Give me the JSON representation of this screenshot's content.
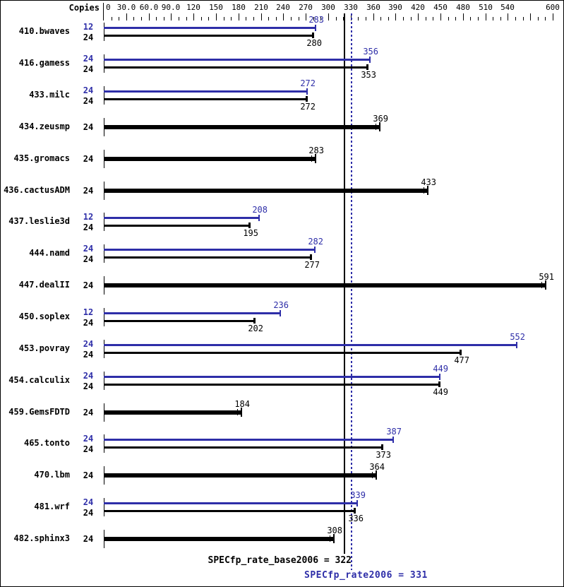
{
  "header": {
    "copies_label": "Copies"
  },
  "colors": {
    "peak": "#2E2EA8",
    "base": "#000000"
  },
  "axis": {
    "min": 0,
    "max": 600,
    "minor_step": 10,
    "major_step": 30,
    "tick_labels": [
      {
        "value": 0,
        "label": "0"
      },
      {
        "value": 30,
        "label": "30.0"
      },
      {
        "value": 60,
        "label": "60.0"
      },
      {
        "value": 90,
        "label": "90.0"
      },
      {
        "value": 120,
        "label": "120"
      },
      {
        "value": 150,
        "label": "150"
      },
      {
        "value": 180,
        "label": "180"
      },
      {
        "value": 210,
        "label": "210"
      },
      {
        "value": 240,
        "label": "240"
      },
      {
        "value": 270,
        "label": "270"
      },
      {
        "value": 300,
        "label": "300"
      },
      {
        "value": 330,
        "label": "330"
      },
      {
        "value": 360,
        "label": "360"
      },
      {
        "value": 390,
        "label": "390"
      },
      {
        "value": 420,
        "label": "420"
      },
      {
        "value": 450,
        "label": "450"
      },
      {
        "value": 480,
        "label": "480"
      },
      {
        "value": 510,
        "label": "510"
      },
      {
        "value": 540,
        "label": "540"
      },
      {
        "value": 570,
        "label": ""
      },
      {
        "value": 600,
        "label": "600"
      }
    ]
  },
  "chart_data": {
    "type": "bar",
    "orientation": "horizontal",
    "axis_range": [
      0,
      600
    ],
    "grid": false,
    "legend": false,
    "categories": [
      "410.bwaves",
      "416.gamess",
      "433.milc",
      "434.zeusmp",
      "435.gromacs",
      "436.cactusADM",
      "437.leslie3d",
      "444.namd",
      "447.dealII",
      "450.soplex",
      "453.povray",
      "454.calculix",
      "459.GemsFDTD",
      "465.tonto",
      "470.lbm",
      "481.wrf",
      "482.sphinx3"
    ],
    "series": [
      {
        "name": "peak",
        "color": "#2E2EA8",
        "copies": [
          12,
          24,
          24,
          null,
          null,
          null,
          12,
          24,
          null,
          12,
          24,
          24,
          null,
          24,
          null,
          24,
          null
        ],
        "values": [
          283,
          356,
          272,
          null,
          null,
          null,
          208,
          282,
          null,
          236,
          552,
          449,
          null,
          387,
          null,
          339,
          null
        ]
      },
      {
        "name": "base",
        "color": "#000000",
        "copies": [
          24,
          24,
          24,
          24,
          24,
          24,
          24,
          24,
          24,
          24,
          24,
          24,
          24,
          24,
          24,
          24,
          24
        ],
        "values": [
          280,
          353,
          272,
          369,
          283,
          433,
          195,
          277,
          591,
          202,
          477,
          449,
          184,
          373,
          364,
          336,
          308
        ]
      }
    ],
    "reference_lines": [
      {
        "label": "SPECfp_rate_base2006 = 322",
        "value": 322,
        "style": "solid",
        "color": "#000000"
      },
      {
        "label": "SPECfp_rate2006 = 331",
        "value": 331,
        "style": "dotted",
        "color": "#2E2EA8"
      }
    ]
  }
}
